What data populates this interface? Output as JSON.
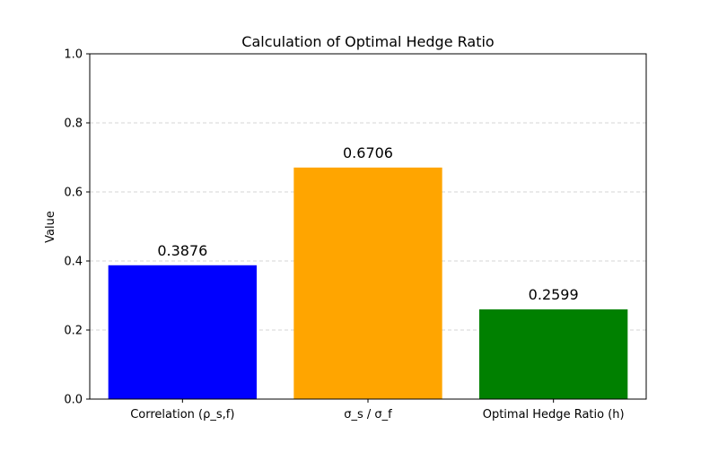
{
  "chart_data": {
    "type": "bar",
    "title": "Calculation of Optimal Hedge Ratio",
    "xlabel": "",
    "ylabel": "Value",
    "categories": [
      "Correlation (ρ_s,f)",
      "σ_s / σ_f",
      "Optimal Hedge Ratio (h)"
    ],
    "values": [
      0.3876,
      0.6706,
      0.2599
    ],
    "data_labels": [
      "0.3876",
      "0.6706",
      "0.2599"
    ],
    "colors": [
      "#0000ff",
      "#ffa500",
      "#008000"
    ],
    "ylim": [
      0,
      1.0
    ],
    "yticks": [
      0.0,
      0.2,
      0.4,
      0.6,
      0.8,
      1.0
    ],
    "ytick_labels": [
      "0.0",
      "0.2",
      "0.4",
      "0.6",
      "0.8",
      "1.0"
    ],
    "grid": "y-axis dashed",
    "legend": "none"
  }
}
